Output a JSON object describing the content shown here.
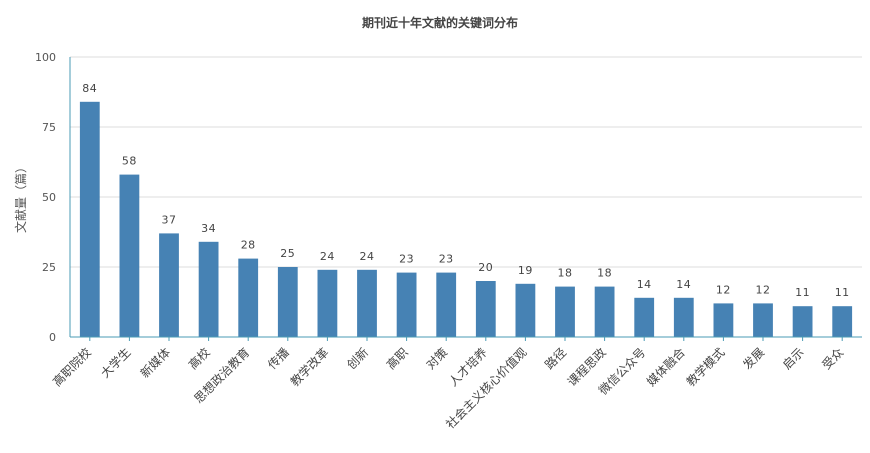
{
  "chart_data": {
    "type": "bar",
    "title": "期刊近十年文献的关键词分布",
    "ylabel": "文献量（篇）",
    "xlabel": "",
    "ylim": [
      0,
      100
    ],
    "yticks": [
      0,
      25,
      50,
      75,
      100
    ],
    "grid": true,
    "bar_color": "#4682b4",
    "categories": [
      "高职院校",
      "大学生",
      "新媒体",
      "高校",
      "思想政治教育",
      "传播",
      "教学改革",
      "创新",
      "高职",
      "对策",
      "人才培养",
      "社会主义核心价值观",
      "路径",
      "课程思政",
      "微信公众号",
      "媒体融合",
      "教学模式",
      "发展",
      "启示",
      "受众"
    ],
    "values": [
      84,
      58,
      37,
      34,
      28,
      25,
      24,
      24,
      23,
      23,
      20,
      19,
      18,
      18,
      14,
      14,
      12,
      12,
      11,
      11
    ]
  }
}
